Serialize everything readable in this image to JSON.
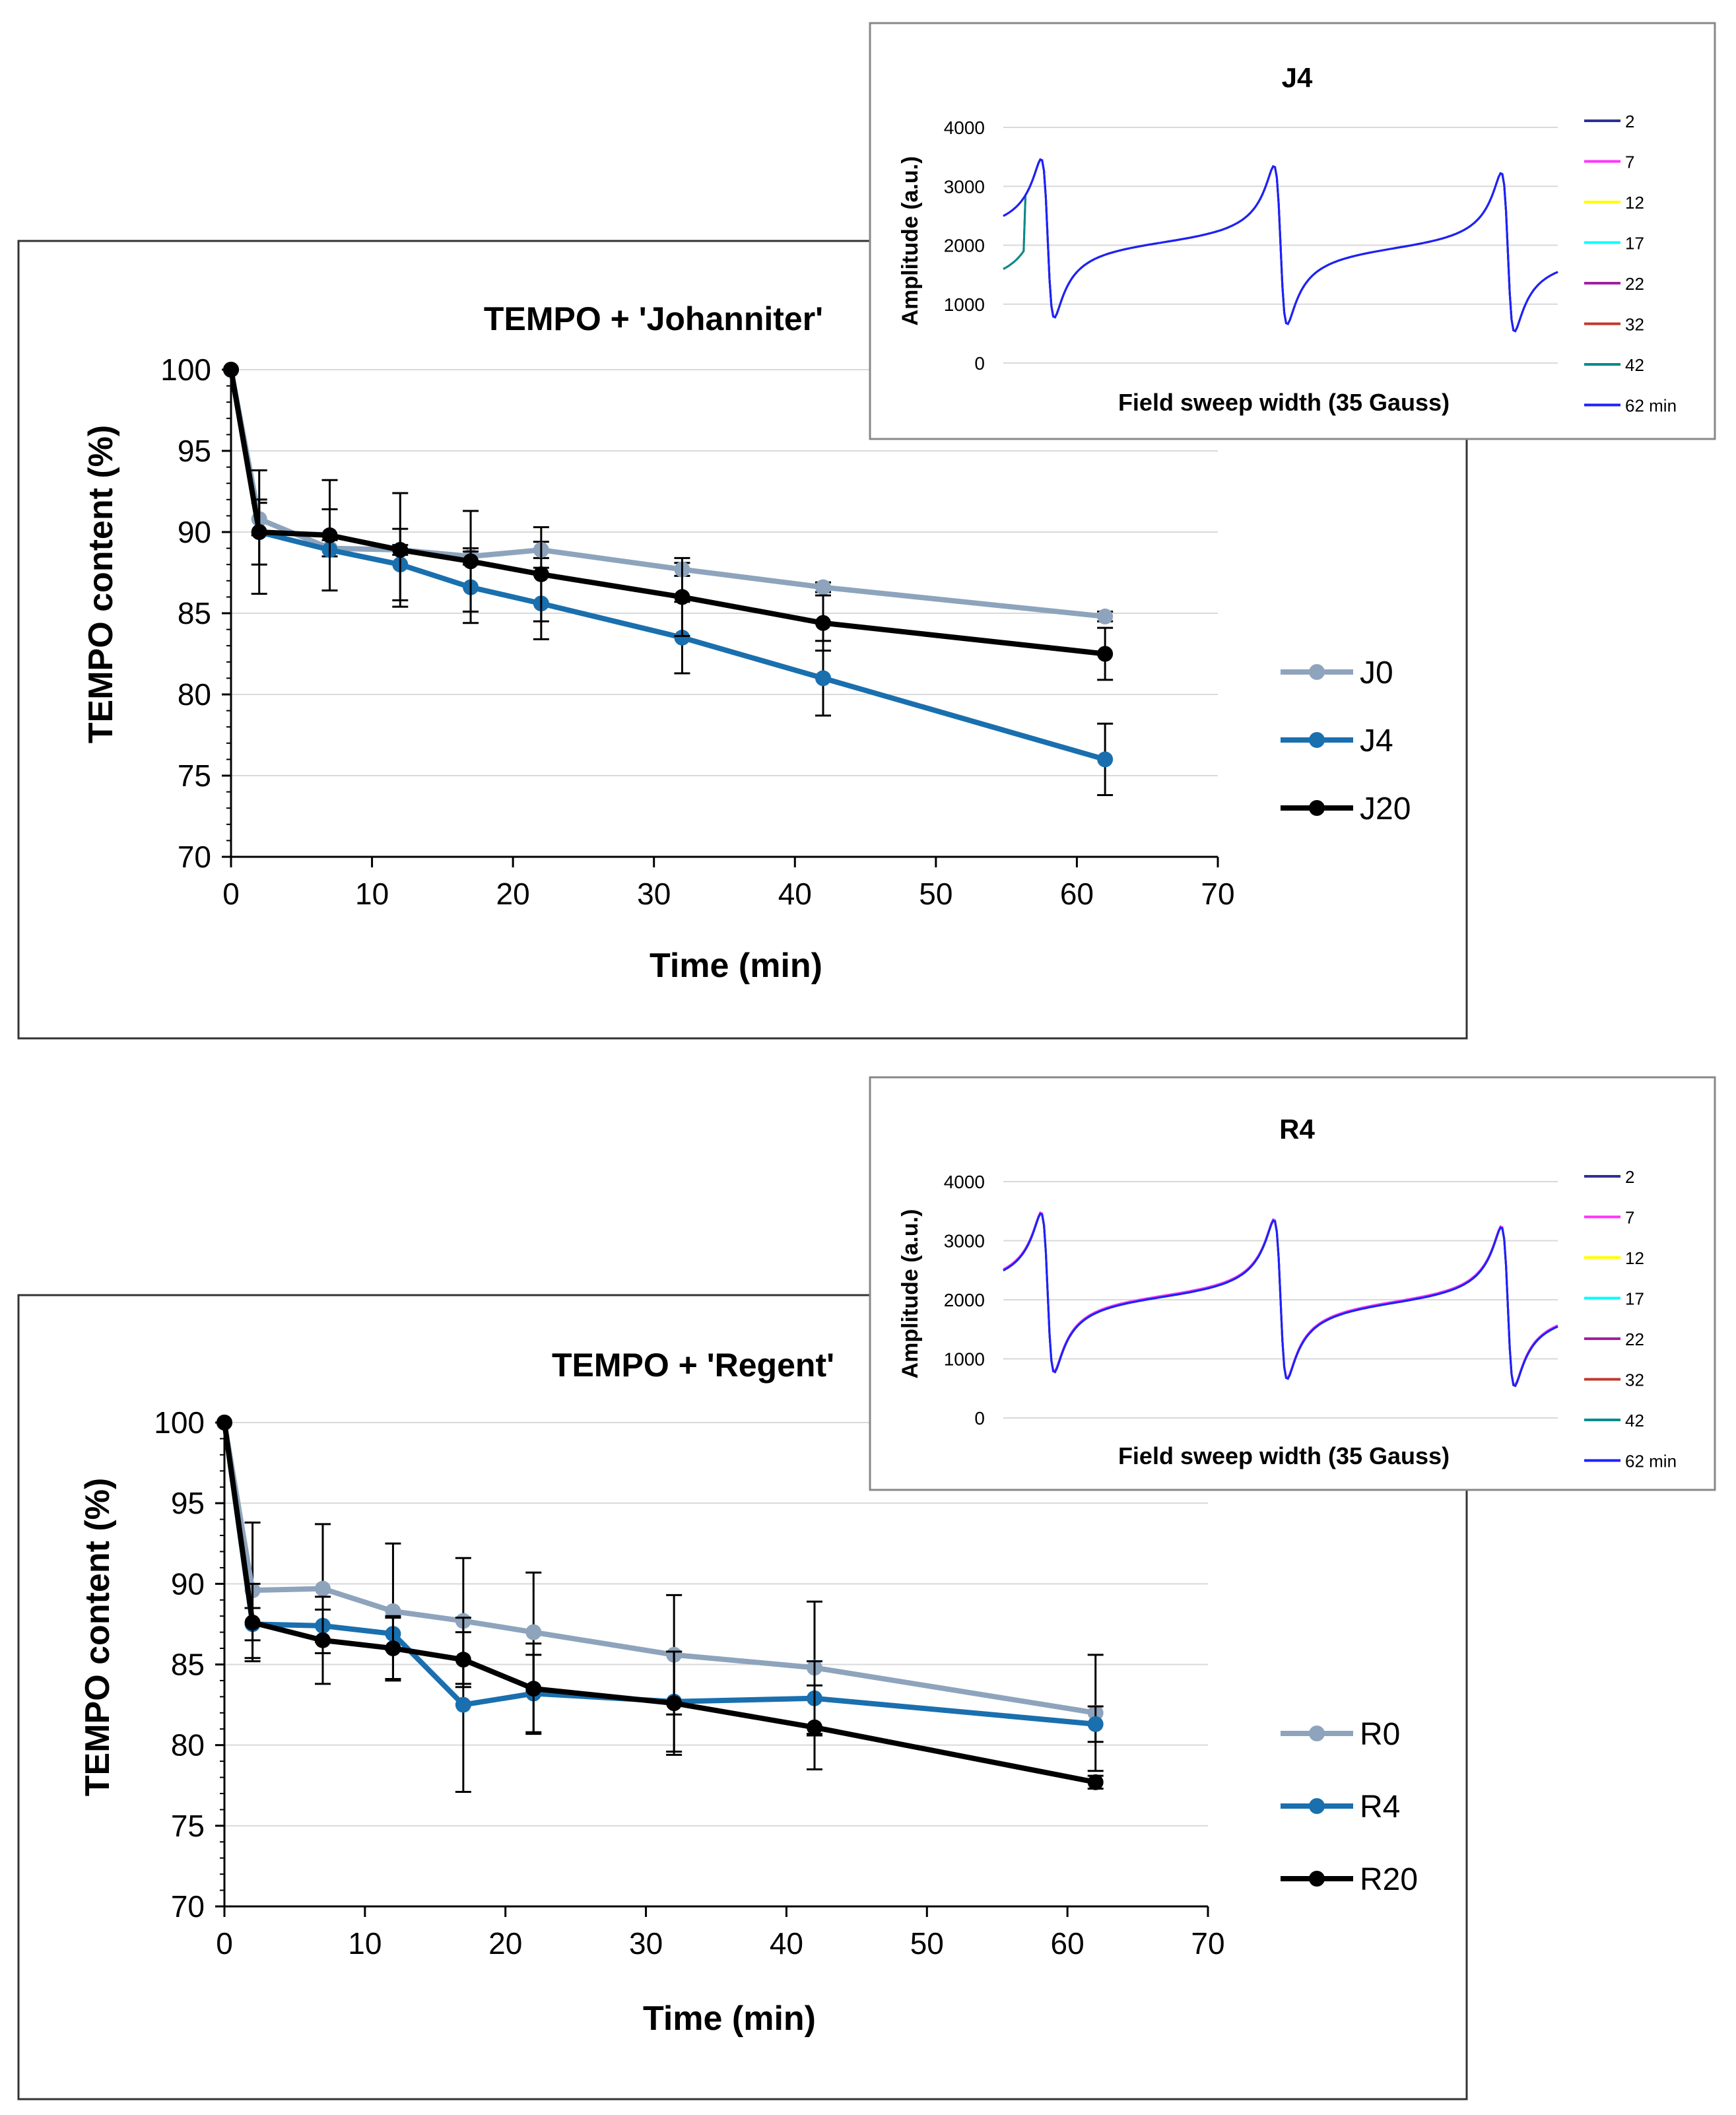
{
  "chart_data": [
    {
      "type": "line",
      "title": "TEMPO + 'Johanniter'",
      "xlabel": "Time (min)",
      "ylabel": "TEMPO content (%)",
      "xlim": [
        0,
        70
      ],
      "ylim": [
        70,
        100
      ],
      "xticks": [
        "0",
        "10",
        "20",
        "30",
        "40",
        "50",
        "60",
        "70"
      ],
      "yticks": [
        "70",
        "75",
        "80",
        "85",
        "90",
        "95",
        "100"
      ],
      "x": [
        0,
        2,
        7,
        12,
        17,
        22,
        32,
        42,
        62
      ],
      "series": [
        {
          "name": "J0",
          "color": "#8ea4bd",
          "values": [
            100,
            90.8,
            89.0,
            88.9,
            88.5,
            88.9,
            87.7,
            86.6,
            84.8
          ],
          "err": [
            0,
            1.0,
            0.5,
            0.3,
            0.5,
            0.5,
            0.4,
            0.3,
            0.3
          ]
        },
        {
          "name": "J4",
          "color": "#1a6fae",
          "values": [
            100,
            90.0,
            88.9,
            88.0,
            86.6,
            85.6,
            83.5,
            81.0,
            76.0
          ],
          "err": [
            0,
            2.0,
            2.5,
            2.2,
            2.2,
            2.2,
            2.2,
            2.3,
            2.2
          ]
        },
        {
          "name": "J20",
          "color": "#000000",
          "values": [
            100,
            90.0,
            89.8,
            88.9,
            88.2,
            87.4,
            86.0,
            84.4,
            82.5
          ],
          "err": [
            0,
            3.8,
            3.4,
            3.5,
            3.1,
            2.9,
            2.4,
            1.7,
            1.6
          ]
        }
      ]
    },
    {
      "type": "line",
      "title": "TEMPO + 'Regent'",
      "xlabel": "Time (min)",
      "ylabel": "TEMPO content (%)",
      "xlim": [
        0,
        70
      ],
      "ylim": [
        70,
        100
      ],
      "xticks": [
        "0",
        "10",
        "20",
        "30",
        "40",
        "50",
        "60",
        "70"
      ],
      "yticks": [
        "70",
        "75",
        "80",
        "85",
        "90",
        "95",
        "100"
      ],
      "x": [
        0,
        2,
        7,
        12,
        17,
        22,
        32,
        42,
        62
      ],
      "series": [
        {
          "name": "R0",
          "color": "#8ea4bd",
          "values": [
            100,
            89.6,
            89.7,
            88.3,
            87.7,
            87.0,
            85.6,
            84.8,
            82.0
          ],
          "err": [
            0,
            4.2,
            4.0,
            4.2,
            3.9,
            3.7,
            3.7,
            4.1,
            3.6
          ]
        },
        {
          "name": "R4",
          "color": "#1a6fae",
          "values": [
            100,
            87.5,
            87.4,
            86.9,
            82.5,
            83.2,
            82.7,
            82.9,
            81.3
          ],
          "err": [
            0,
            1.0,
            1.0,
            1.0,
            5.4,
            2.4,
            3.1,
            2.3,
            1.1
          ]
        },
        {
          "name": "R20",
          "color": "#000000",
          "values": [
            100,
            87.6,
            86.5,
            86.0,
            85.3,
            83.5,
            82.6,
            81.1,
            77.7
          ],
          "err": [
            0,
            2.4,
            2.7,
            2.0,
            1.7,
            2.8,
            3.2,
            2.6,
            0.4
          ]
        }
      ]
    },
    {
      "type": "line",
      "title": "J4",
      "xlabel": "Field sweep width (35 Gauss)",
      "ylabel": "Amplitude (a.u.)",
      "ylim": [
        0,
        4000
      ],
      "yticks": [
        "0",
        "1000",
        "2000",
        "3000",
        "4000"
      ],
      "variant": "J",
      "legend": [
        {
          "label": "2",
          "color": "#2e3192"
        },
        {
          "label": "7",
          "color": "#ff33ff"
        },
        {
          "label": "12",
          "color": "#ffff00"
        },
        {
          "label": "17",
          "color": "#00ffff"
        },
        {
          "label": "22",
          "color": "#a020a0"
        },
        {
          "label": "32",
          "color": "#c0392b"
        },
        {
          "label": "42",
          "color": "#008b8b"
        },
        {
          "label": "62 min",
          "color": "#1f1fff"
        }
      ]
    },
    {
      "type": "line",
      "title": "R4",
      "xlabel": "Field sweep width (35 Gauss)",
      "ylabel": "Amplitude (a.u.)",
      "ylim": [
        0,
        4000
      ],
      "yticks": [
        "0",
        "1000",
        "2000",
        "3000",
        "4000"
      ],
      "variant": "R",
      "legend": [
        {
          "label": "2",
          "color": "#2e3192"
        },
        {
          "label": "7",
          "color": "#ff33ff"
        },
        {
          "label": "12",
          "color": "#ffff00"
        },
        {
          "label": "17",
          "color": "#00ffff"
        },
        {
          "label": "22",
          "color": "#a020a0"
        },
        {
          "label": "32",
          "color": "#c0392b"
        },
        {
          "label": "42",
          "color": "#008b8b"
        },
        {
          "label": "62 min",
          "color": "#1f1fff"
        }
      ]
    }
  ]
}
